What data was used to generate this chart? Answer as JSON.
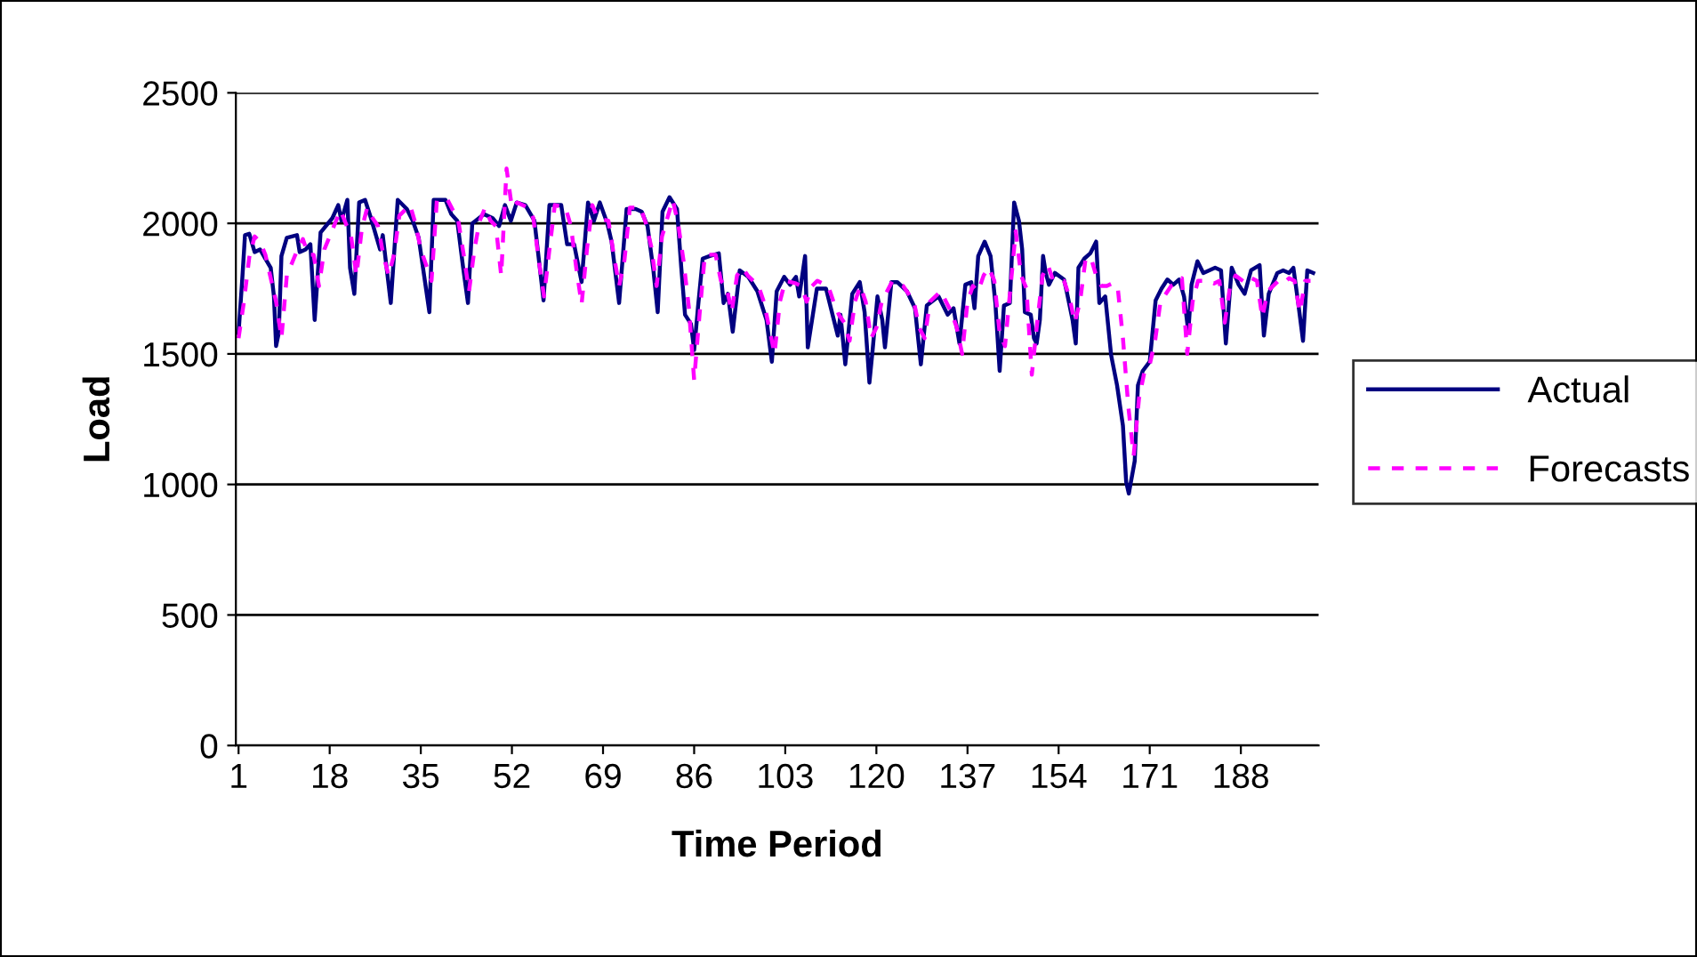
{
  "chart_data": {
    "type": "line",
    "xlabel": "Time Period",
    "ylabel": "Load",
    "xlim": [
      0.5,
      202.5
    ],
    "xticks": [
      1,
      18,
      35,
      52,
      69,
      86,
      103,
      120,
      137,
      154,
      171,
      188
    ],
    "ylim": [
      0,
      2500
    ],
    "yticks": [
      0,
      500,
      1000,
      1500,
      2000,
      2500
    ],
    "grid": "y",
    "legend": "right",
    "marker": "none",
    "series": [
      {
        "name": "Actual",
        "color": "#000080",
        "line_style": "solid",
        "x": [
          1,
          1.7,
          2.2,
          3,
          4,
          5,
          6,
          7,
          7.6,
          8,
          8.5,
          9,
          10,
          11.9,
          12.4,
          13.5,
          14.4,
          15.2,
          16.3,
          18.5,
          19.6,
          20.2,
          21.3,
          21.8,
          22.6,
          23.5,
          24.6,
          25.7,
          27.4,
          27.9,
          29.4,
          30.7,
          32.4,
          33.5,
          34.6,
          36.6,
          37.4,
          39.6,
          40.7,
          41.8,
          42.9,
          43.8,
          44.6,
          46.8,
          48.4,
          49.6,
          50.7,
          51.8,
          52.9,
          54.5,
          56.2,
          57.9,
          59,
          61.2,
          62.3,
          63.6,
          65,
          66.2,
          67.3,
          68.4,
          69.8,
          70.6,
          72,
          73.4,
          75.1,
          76.2,
          77.3,
          78.4,
          79.2,
          80.1,
          81.4,
          82.8,
          83.6,
          84.3,
          85.4,
          86,
          86.7,
          87.6,
          88.9,
          90.6,
          91.5,
          92.3,
          93.2,
          94.5,
          96.1,
          97.8,
          99.5,
          100.5,
          101.4,
          102.8,
          103.9,
          105,
          105.6,
          106.7,
          107.2,
          108.9,
          110.6,
          112.8,
          113.3,
          114.2,
          115.5,
          116.9,
          117.8,
          118.7,
          119.3,
          120.2,
          121.1,
          121.6,
          122.8,
          123.9,
          125.7,
          127.2,
          128.3,
          129.4,
          131.6,
          133.3,
          134.4,
          135.5,
          136.6,
          137.7,
          138.3,
          139,
          140.2,
          141.3,
          142.2,
          143,
          143.8,
          144.9,
          145.7,
          146.6,
          147.2,
          147.7,
          148.8,
          149.4,
          149.9,
          150.5,
          151.1,
          151.6,
          152.2,
          153.3,
          155,
          155.5,
          156.6,
          157.2,
          157.7,
          158.8,
          159.9,
          161,
          161.6,
          162.7,
          163.8,
          164.9,
          166,
          166.6,
          167.1,
          168.2,
          168.8,
          169.7,
          171,
          172.1,
          173.2,
          174.3,
          175.4,
          176.5,
          177.4,
          178.2,
          178.8,
          179.9,
          181,
          182.1,
          183.2,
          184.3,
          185.2,
          186.3,
          187.6,
          188.7,
          189.9,
          191.5,
          192.3,
          193.2,
          194.8,
          195.9,
          197,
          197.8,
          198.7,
          199.6,
          200.4,
          201.5
        ],
        "values": [
          1580,
          1790,
          1955,
          1960,
          1890,
          1900,
          1865,
          1830,
          1720,
          1530,
          1580,
          1875,
          1945,
          1955,
          1890,
          1900,
          1920,
          1630,
          1965,
          2020,
          2070,
          2010,
          2090,
          1830,
          1730,
          2080,
          2090,
          2020,
          1900,
          1955,
          1695,
          2090,
          2055,
          2010,
          1945,
          1660,
          2090,
          2090,
          2035,
          2010,
          1830,
          1695,
          2000,
          2035,
          2020,
          1990,
          2070,
          2010,
          2080,
          2070,
          2010,
          1705,
          2070,
          2070,
          1920,
          1920,
          1775,
          2080,
          2010,
          2080,
          2000,
          1930,
          1695,
          2055,
          2055,
          2045,
          1990,
          1820,
          1660,
          2045,
          2100,
          2055,
          1830,
          1650,
          1615,
          1515,
          1675,
          1865,
          1875,
          1885,
          1695,
          1730,
          1585,
          1820,
          1795,
          1740,
          1630,
          1470,
          1740,
          1795,
          1765,
          1795,
          1720,
          1875,
          1525,
          1750,
          1750,
          1570,
          1650,
          1460,
          1730,
          1775,
          1660,
          1390,
          1515,
          1720,
          1630,
          1525,
          1775,
          1775,
          1740,
          1675,
          1460,
          1685,
          1720,
          1650,
          1675,
          1540,
          1765,
          1775,
          1675,
          1875,
          1930,
          1875,
          1695,
          1435,
          1685,
          1695,
          2080,
          2010,
          1900,
          1660,
          1650,
          1560,
          1540,
          1630,
          1875,
          1810,
          1765,
          1810,
          1785,
          1740,
          1630,
          1540,
          1830,
          1865,
          1885,
          1930,
          1695,
          1720,
          1495,
          1380,
          1225,
          1010,
          965,
          1090,
          1380,
          1435,
          1470,
          1705,
          1750,
          1785,
          1765,
          1785,
          1720,
          1585,
          1765,
          1855,
          1810,
          1820,
          1830,
          1820,
          1540,
          1830,
          1765,
          1730,
          1820,
          1840,
          1570,
          1730,
          1810,
          1820,
          1810,
          1830,
          1695,
          1550,
          1820,
          1810
        ]
      },
      {
        "name": "Forecasts",
        "color": "#ff00ff",
        "line_style": "dashed",
        "x": [
          1,
          2,
          3,
          4,
          5,
          6,
          8,
          9,
          10,
          12,
          13,
          14,
          15,
          16,
          17,
          19,
          20,
          21,
          22,
          23,
          24,
          25,
          26,
          27,
          28,
          29,
          30,
          31,
          33,
          34,
          35,
          37,
          38,
          40,
          41,
          42,
          43,
          44,
          45,
          46,
          47,
          48,
          49,
          50,
          51,
          52,
          53,
          55,
          56,
          57,
          58,
          59,
          60,
          62,
          63,
          64,
          65,
          66,
          67,
          68,
          70,
          71,
          72,
          73,
          74,
          76,
          77,
          78,
          79,
          80,
          82,
          83,
          84,
          85,
          86,
          87,
          88,
          90,
          91,
          92,
          93,
          94,
          95,
          96,
          98,
          99,
          100,
          101,
          102,
          103,
          105,
          106,
          107,
          108,
          109,
          111,
          112,
          113,
          114,
          115,
          116,
          117,
          118,
          119,
          120,
          121,
          122,
          123,
          125,
          126,
          127,
          128,
          129,
          130,
          132,
          133,
          134,
          135,
          136,
          137,
          138,
          139,
          140,
          141,
          142,
          143,
          144,
          145,
          146,
          147,
          148,
          149,
          150,
          151,
          152,
          153,
          155,
          156,
          157,
          158,
          159,
          160,
          161,
          162,
          163,
          164,
          165,
          166,
          167,
          168,
          169,
          170,
          171,
          172,
          173,
          175,
          176,
          177,
          178,
          179,
          180,
          182,
          183,
          184,
          185,
          186,
          187,
          189,
          190,
          191,
          192,
          193,
          195,
          196,
          197,
          198,
          199,
          200,
          201
        ],
        "values": [
          1560,
          1700,
          1870,
          1950,
          1930,
          1880,
          1700,
          1560,
          1800,
          1900,
          1940,
          1880,
          1880,
          1760,
          1900,
          2000,
          2050,
          2000,
          1950,
          1800,
          1980,
          2060,
          2020,
          1990,
          1880,
          1800,
          1880,
          2030,
          2070,
          2000,
          1900,
          1780,
          2090,
          2090,
          2050,
          2010,
          1880,
          1740,
          1900,
          2010,
          2060,
          2010,
          1990,
          1800,
          2210,
          2060,
          2080,
          2060,
          2020,
          1860,
          1720,
          1900,
          2070,
          2060,
          1990,
          1830,
          1690,
          1900,
          2070,
          2020,
          2010,
          1880,
          1760,
          1860,
          2060,
          2060,
          2000,
          1910,
          1760,
          1950,
          2090,
          2000,
          1860,
          1680,
          1400,
          1650,
          1880,
          1880,
          1780,
          1760,
          1660,
          1800,
          1830,
          1800,
          1760,
          1700,
          1600,
          1500,
          1700,
          1780,
          1770,
          1760,
          1700,
          1760,
          1780,
          1760,
          1700,
          1650,
          1620,
          1550,
          1700,
          1760,
          1700,
          1560,
          1600,
          1700,
          1740,
          1780,
          1760,
          1730,
          1700,
          1600,
          1560,
          1700,
          1740,
          1700,
          1660,
          1600,
          1500,
          1700,
          1760,
          1740,
          1800,
          1830,
          1780,
          1580,
          1530,
          1750,
          1970,
          1800,
          1750,
          1420,
          1620,
          1800,
          1840,
          1780,
          1780,
          1720,
          1620,
          1700,
          1860,
          1870,
          1800,
          1760,
          1760,
          1770,
          1760,
          1560,
          1300,
          1110,
          1330,
          1430,
          1460,
          1550,
          1700,
          1760,
          1770,
          1790,
          1500,
          1700,
          1780,
          1780,
          1770,
          1780,
          1620,
          1760,
          1800,
          1770,
          1790,
          1780,
          1640,
          1740,
          1780,
          1770,
          1790,
          1780,
          1660,
          1780,
          1780
        ]
      }
    ]
  }
}
